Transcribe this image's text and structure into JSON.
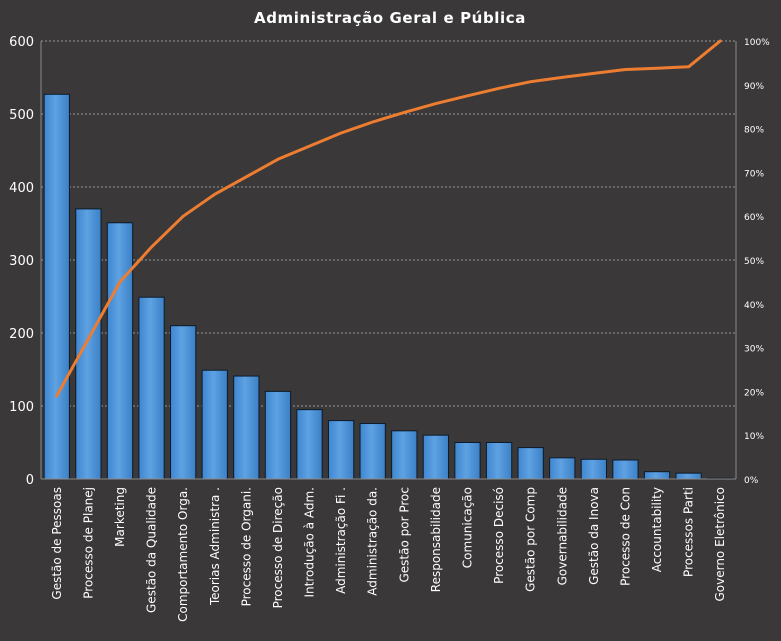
{
  "chart_data": {
    "type": "bar",
    "title": "Administração  Geral  e Pública",
    "categories": [
      "Gestão de Pessoas",
      "Processo de Planej",
      "Marketing",
      "Gestão da Qualidade",
      "Comportamento  Orga.",
      "Teorias Administra .",
      "Processo de Organi.",
      "Processo de Direção",
      "Introdução  à Adm.",
      "Administração Fi .",
      "Administração da.",
      "Gestão por Proc",
      "Responsabilidade",
      "Comunicação",
      "Processo Decisó",
      "Gestão por Comp",
      "Governabilidade",
      "Gestão da Inova",
      "Processo de Con",
      "Accountability",
      "Processos Parti",
      "Governo Eletrônico"
    ],
    "series": [
      {
        "type": "bar",
        "axis": "left",
        "color": "#4f95d8",
        "values": [
          527,
          370,
          351,
          249,
          210,
          149,
          141,
          120,
          95,
          80,
          76,
          66,
          60,
          50,
          50,
          43,
          29,
          27,
          26,
          10,
          8,
          1
        ]
      },
      {
        "type": "line",
        "axis": "right",
        "color": "#ed7d31",
        "values": [
          19,
          32,
          45,
          53,
          60,
          65,
          69,
          73,
          76,
          79,
          81.5,
          83.7,
          85.7,
          87.5,
          89.2,
          90.7,
          91.7,
          92.6,
          93.5,
          93.8,
          94.1,
          100
        ]
      }
    ],
    "ylim": [
      0,
      600
    ],
    "y_ticks": [
      "0",
      "100",
      "200",
      "300",
      "400",
      "500",
      "600"
    ],
    "y2lim": [
      0,
      100
    ],
    "y2_ticks": [
      "0%",
      "10%",
      "20%",
      "30%",
      "40%",
      "50%",
      "60%",
      "70%",
      "80%",
      "90%",
      "100%"
    ],
    "grid": true,
    "legend": "none"
  }
}
